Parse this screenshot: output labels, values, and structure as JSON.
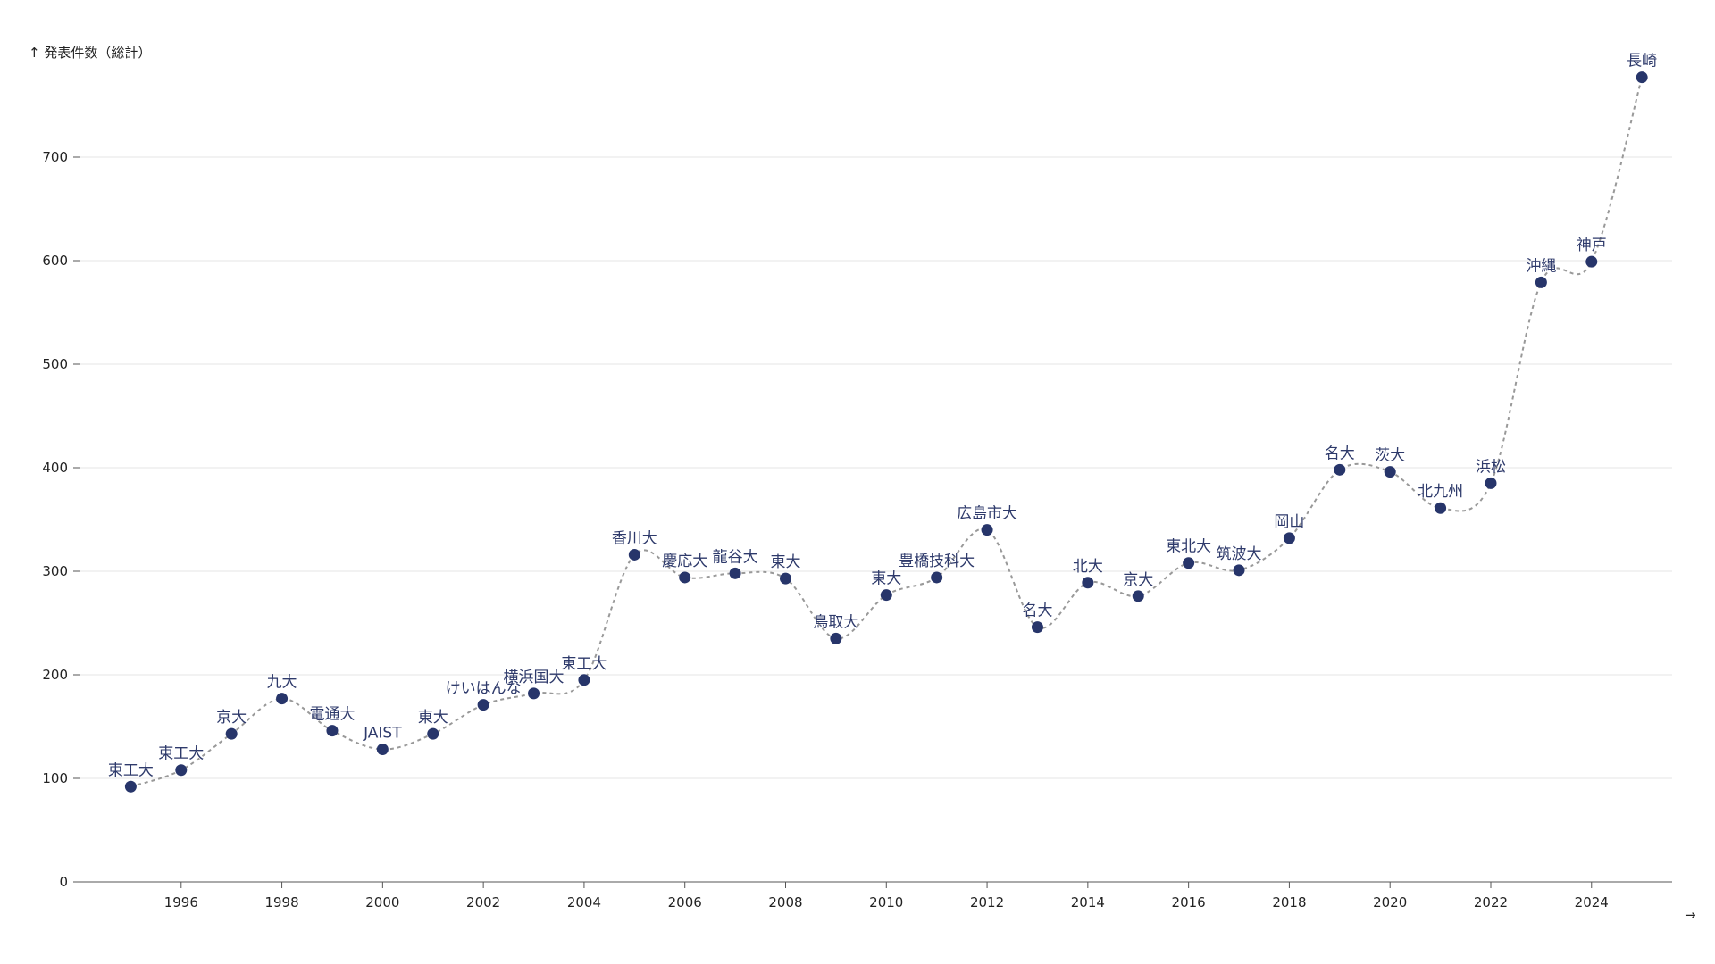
{
  "chart_data": {
    "type": "line",
    "ylabel": "↑ 発表件数（総計）",
    "xlabel": "",
    "x_arrow": "→",
    "ylim": [
      0,
      800
    ],
    "xlim": [
      1994,
      2025.6
    ],
    "y_ticks": [
      0,
      100,
      200,
      300,
      400,
      500,
      600,
      700
    ],
    "x_ticks": [
      1996,
      1998,
      2000,
      2002,
      2004,
      2006,
      2008,
      2010,
      2012,
      2014,
      2016,
      2018,
      2020,
      2022,
      2024
    ],
    "grid": true,
    "points": [
      {
        "year": 1995,
        "value": 92,
        "label": "東工大"
      },
      {
        "year": 1996,
        "value": 108,
        "label": "東工大"
      },
      {
        "year": 1997,
        "value": 143,
        "label": "京大"
      },
      {
        "year": 1998,
        "value": 177,
        "label": "九大"
      },
      {
        "year": 1999,
        "value": 146,
        "label": "電通大"
      },
      {
        "year": 2000,
        "value": 128,
        "label": "JAIST"
      },
      {
        "year": 2001,
        "value": 143,
        "label": "東大"
      },
      {
        "year": 2002,
        "value": 171,
        "label": "けいはんな"
      },
      {
        "year": 2003,
        "value": 182,
        "label": "横浜国大"
      },
      {
        "year": 2004,
        "value": 195,
        "label": "東工大"
      },
      {
        "year": 2005,
        "value": 316,
        "label": "香川大"
      },
      {
        "year": 2006,
        "value": 294,
        "label": "慶応大"
      },
      {
        "year": 2007,
        "value": 298,
        "label": "龍谷大"
      },
      {
        "year": 2008,
        "value": 293,
        "label": "東大"
      },
      {
        "year": 2009,
        "value": 235,
        "label": "鳥取大"
      },
      {
        "year": 2010,
        "value": 277,
        "label": "東大"
      },
      {
        "year": 2011,
        "value": 294,
        "label": "豊橋技科大"
      },
      {
        "year": 2012,
        "value": 340,
        "label": "広島市大"
      },
      {
        "year": 2013,
        "value": 246,
        "label": "名大"
      },
      {
        "year": 2014,
        "value": 289,
        "label": "北大"
      },
      {
        "year": 2015,
        "value": 276,
        "label": "京大"
      },
      {
        "year": 2016,
        "value": 308,
        "label": "東北大"
      },
      {
        "year": 2017,
        "value": 301,
        "label": "筑波大"
      },
      {
        "year": 2018,
        "value": 332,
        "label": "岡山"
      },
      {
        "year": 2019,
        "value": 398,
        "label": "名大"
      },
      {
        "year": 2020,
        "value": 396,
        "label": "茨大"
      },
      {
        "year": 2021,
        "value": 361,
        "label": "北九州"
      },
      {
        "year": 2022,
        "value": 385,
        "label": "浜松"
      },
      {
        "year": 2023,
        "value": 579,
        "label": "沖縄"
      },
      {
        "year": 2024,
        "value": 599,
        "label": "神戸"
      },
      {
        "year": 2025,
        "value": 777,
        "label": "長崎"
      }
    ]
  }
}
